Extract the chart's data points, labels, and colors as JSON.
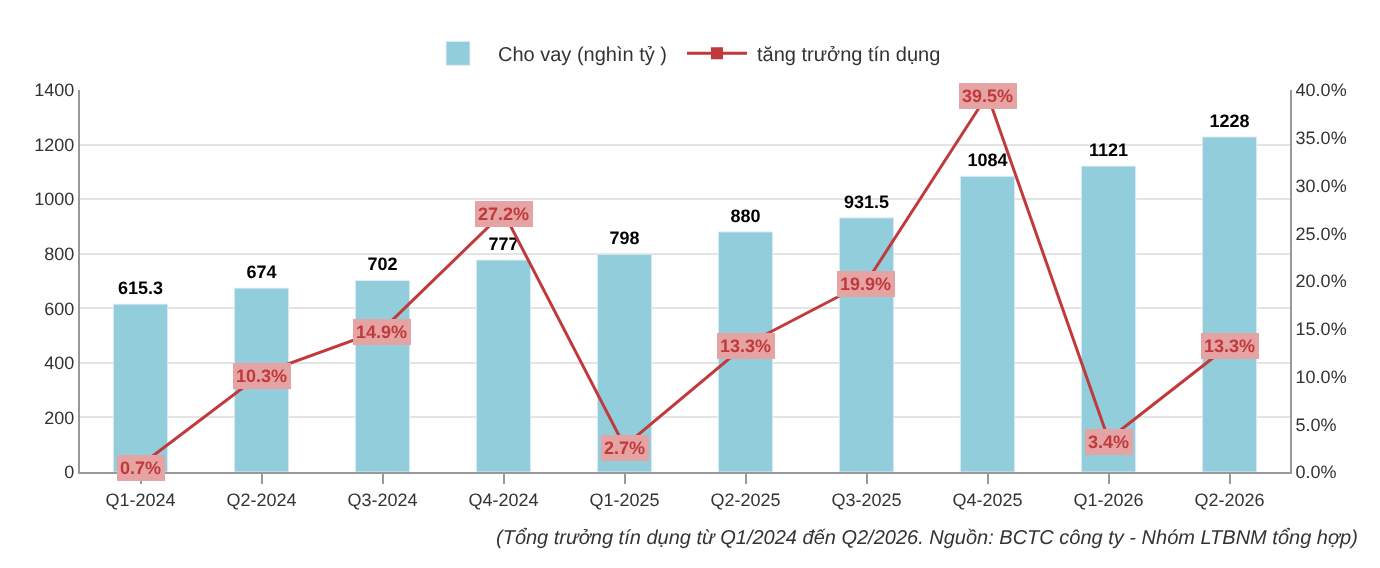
{
  "chart_data": {
    "type": "bar",
    "categories": [
      "Q1-2024",
      "Q2-2024",
      "Q3-2024",
      "Q4-2024",
      "Q1-2025",
      "Q2-2025",
      "Q3-2025",
      "Q4-2025",
      "Q1-2026",
      "Q2-2026"
    ],
    "series": [
      {
        "name": "Cho vay (nghìn tỷ )",
        "color": "#92cddc",
        "values": [
          615.3,
          674,
          702,
          777,
          798,
          880,
          931.5,
          1084,
          1121,
          1228
        ],
        "data_labels": true
      },
      {
        "name": "tăng trưởng tín dụng",
        "type": "line",
        "axis": "y2",
        "color": "#c0393b",
        "marker": "square",
        "values": [
          0.7,
          10.3,
          14.9,
          27.2,
          2.7,
          13.3,
          19.9,
          39.5,
          3.4,
          13.3
        ],
        "value_labels": [
          "0.7%",
          "10.3%",
          "14.9%",
          "27.2%",
          "2.7%",
          "13.3%",
          "19.9%",
          "39.5%",
          "3.4%",
          "13.3%"
        ]
      }
    ],
    "ylim": [
      0,
      1400
    ],
    "yticks": [
      0,
      200,
      400,
      600,
      800,
      1000,
      1200,
      1400
    ],
    "y2lim": [
      0,
      40
    ],
    "y2ticks": [
      {
        "value": 0,
        "label": "0.0%"
      },
      {
        "value": 5,
        "label": "5.0%"
      },
      {
        "value": 10,
        "label": "10.0%"
      },
      {
        "value": 15,
        "label": "15.0%"
      },
      {
        "value": 20,
        "label": "20.0%"
      },
      {
        "value": 25,
        "label": "25.0%"
      },
      {
        "value": 30,
        "label": "30.0%"
      },
      {
        "value": 35,
        "label": "35.0%"
      },
      {
        "value": 40,
        "label": "40.0%"
      }
    ],
    "grid": "y",
    "legend": "top",
    "annotations": [
      "(Tổng trưởng tín dụng từ Q1/2024 đến Q2/2026. Nguồn: BCTC công ty - Nhóm LTBNM tổng hợp)"
    ]
  }
}
